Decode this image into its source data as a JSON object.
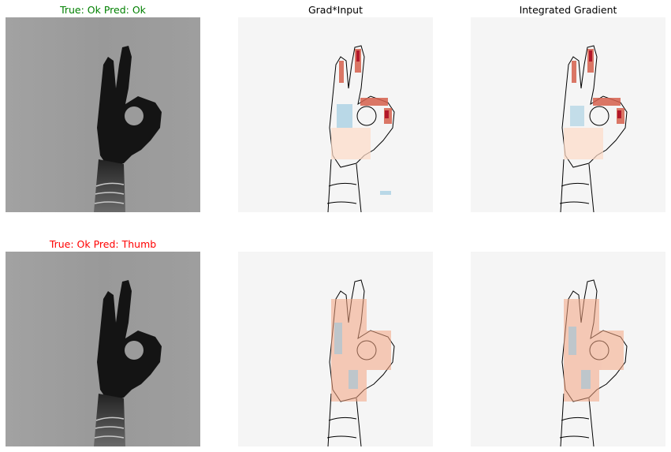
{
  "rows": [
    {
      "title": "True: Ok Pred: Ok",
      "title_color": "#008000",
      "map_titles": [
        "Grad*Input",
        "Integrated Gradient"
      ]
    },
    {
      "title": "True: Ok Pred: Thumb",
      "title_color": "#ff0000",
      "map_titles": [
        "",
        ""
      ]
    }
  ],
  "colors": {
    "background": "#ffffff",
    "map_background": "#f5f5f5",
    "positive": "#b2182b",
    "negative": "#2166ac",
    "outline": "#000000",
    "photo_background": "#9a9a9a",
    "hand": "#151515"
  }
}
